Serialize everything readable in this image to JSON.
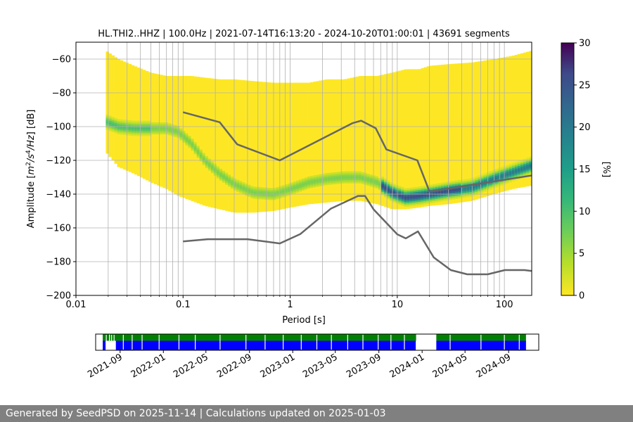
{
  "chart_data": [
    {
      "type": "heatmap",
      "title": "HL.THI2..HHZ | 100.0Hz | 2021-07-14T16:13:20 - 2024-10-20T01:00:01 | 43691 segments",
      "xlabel": "Period [s]",
      "ylabel_parts": [
        "Amplitude [",
        "m",
        "2",
        "/",
        "s",
        "4",
        "/",
        "Hz",
        "] [dB]"
      ],
      "x_scale": "log",
      "xlim": [
        0.01,
        180
      ],
      "ylim": [
        -200,
        -50
      ],
      "x_ticks": [
        {
          "value": 0.01,
          "label": "0.01"
        },
        {
          "value": 0.1,
          "label": "0.1"
        },
        {
          "value": 1,
          "label": "1"
        },
        {
          "value": 10,
          "label": "10"
        },
        {
          "value": 100,
          "label": "100"
        }
      ],
      "y_ticks": [
        {
          "value": -60,
          "label": "−60"
        },
        {
          "value": -80,
          "label": "−80"
        },
        {
          "value": -100,
          "label": "−100"
        },
        {
          "value": -120,
          "label": "−120"
        },
        {
          "value": -140,
          "label": "−140"
        },
        {
          "value": -160,
          "label": "−160"
        },
        {
          "value": -180,
          "label": "−180"
        },
        {
          "value": -200,
          "label": "−200"
        }
      ],
      "grid": true,
      "colormap": "viridis_r",
      "colorbar": {
        "label": "[%]",
        "range": [
          0,
          30
        ],
        "ticks": [
          {
            "value": 0,
            "label": "0"
          },
          {
            "value": 5,
            "label": "5"
          },
          {
            "value": 10,
            "label": "10"
          },
          {
            "value": 15,
            "label": "15"
          },
          {
            "value": 20,
            "label": "20"
          },
          {
            "value": 25,
            "label": "25"
          },
          {
            "value": 30,
            "label": "30"
          }
        ]
      },
      "mode_curve": {
        "period": [
          0.019,
          0.025,
          0.035,
          0.05,
          0.07,
          0.09,
          0.12,
          0.16,
          0.22,
          0.3,
          0.45,
          0.7,
          1.0,
          1.5,
          2.2,
          3.2,
          4.5,
          6.5,
          9,
          12,
          16,
          20,
          30,
          50,
          80,
          120,
          180
        ],
        "db": [
          -97,
          -100,
          -101,
          -101,
          -101,
          -103,
          -110,
          -120,
          -128,
          -134,
          -139,
          -140,
          -137,
          -133,
          -131,
          -130,
          -130,
          -133,
          -139,
          -142,
          -141,
          -140,
          -138,
          -136,
          -131,
          -127,
          -123
        ],
        "lower_db": [
          -115,
          -124,
          -128,
          -133,
          -137,
          -141,
          -144,
          -147,
          -149,
          -151,
          -151,
          -150,
          -148,
          -146,
          -145,
          -144,
          -144,
          -146,
          -149,
          -149,
          -148,
          -147,
          -146,
          -144,
          -140,
          -137,
          -135
        ],
        "upper_db": [
          -55,
          -60,
          -64,
          -68,
          -70,
          -70,
          -70,
          -71,
          -72,
          -72,
          -73,
          -74,
          -74,
          -74,
          -72,
          -72,
          -70,
          -70,
          -68,
          -66,
          -66,
          -64,
          -63,
          -62,
          -60,
          -58,
          -55
        ]
      },
      "nhnm": {
        "period": [
          0.1,
          0.22,
          0.32,
          0.8,
          3.8,
          4.6,
          6.3,
          7.9,
          15.4,
          20,
          354.8
        ],
        "db": [
          -91.5,
          -97.4,
          -110.5,
          -120,
          -98,
          -96.5,
          -101,
          -113.5,
          -120,
          -138.5,
          -126
        ]
      },
      "nlnm": {
        "period": [
          0.1,
          0.17,
          0.4,
          0.8,
          1.24,
          2.4,
          4.3,
          5.0,
          6.0,
          10,
          12,
          15.6,
          21.9,
          31.6,
          45,
          70,
          101,
          154,
          180
        ],
        "db": [
          -168,
          -166.7,
          -166.7,
          -169.2,
          -163.7,
          -148.6,
          -141.1,
          -141.1,
          -149,
          -163.8,
          -166.2,
          -162.1,
          -177.5,
          -185,
          -187.5,
          -187.5,
          -185,
          -185,
          -185.5
        ]
      }
    },
    {
      "type": "timeline",
      "x_ticks": [
        {
          "value": "2021-09-01",
          "label": "2021-09"
        },
        {
          "value": "2022-01-01",
          "label": "2022-01"
        },
        {
          "value": "2022-05-01",
          "label": "2022-05"
        },
        {
          "value": "2022-09-01",
          "label": "2022-09"
        },
        {
          "value": "2023-01-01",
          "label": "2023-01"
        },
        {
          "value": "2023-05-01",
          "label": "2023-05"
        },
        {
          "value": "2023-09-01",
          "label": "2023-09"
        },
        {
          "value": "2024-01-01",
          "label": "2024-01"
        },
        {
          "value": "2024-05-01",
          "label": "2024-05"
        },
        {
          "value": "2024-09-01",
          "label": "2024-09"
        }
      ],
      "xlim": [
        "2021-06-24",
        "2024-11-25"
      ],
      "rows": [
        {
          "color": "#008000",
          "spans": [
            [
              "2021-07-14",
              "2021-08-01"
            ],
            [
              "2021-08-03",
              "2023-12-15"
            ],
            [
              "2024-02-10",
              "2024-10-20"
            ]
          ]
        },
        {
          "color": "#0000ff",
          "spans": [
            [
              "2021-07-14",
              "2021-07-22"
            ],
            [
              "2021-08-20",
              "2023-12-14"
            ],
            [
              "2024-02-10",
              "2024-10-20"
            ]
          ]
        }
      ],
      "gaps": [
        "2021-07-24",
        "2021-08-02",
        "2021-08-08",
        "2021-08-15",
        "2021-09-10",
        "2021-10-05",
        "2021-11-02",
        "2021-12-20",
        "2022-02-14",
        "2022-04-01",
        "2022-06-10",
        "2022-08-22",
        "2022-10-15",
        "2022-12-05",
        "2023-01-25",
        "2023-03-10",
        "2023-04-20",
        "2023-06-05",
        "2023-07-18",
        "2023-08-30",
        "2023-10-05",
        "2023-11-12",
        "2024-03-20",
        "2024-06-15",
        "2024-08-20",
        "2024-10-01"
      ],
      "colors": {
        "frame": "#000000"
      }
    }
  ],
  "footer": {
    "text": "Generated by SeedPSD on 2025-11-14 | Calculations updated on 2025-01-03"
  }
}
